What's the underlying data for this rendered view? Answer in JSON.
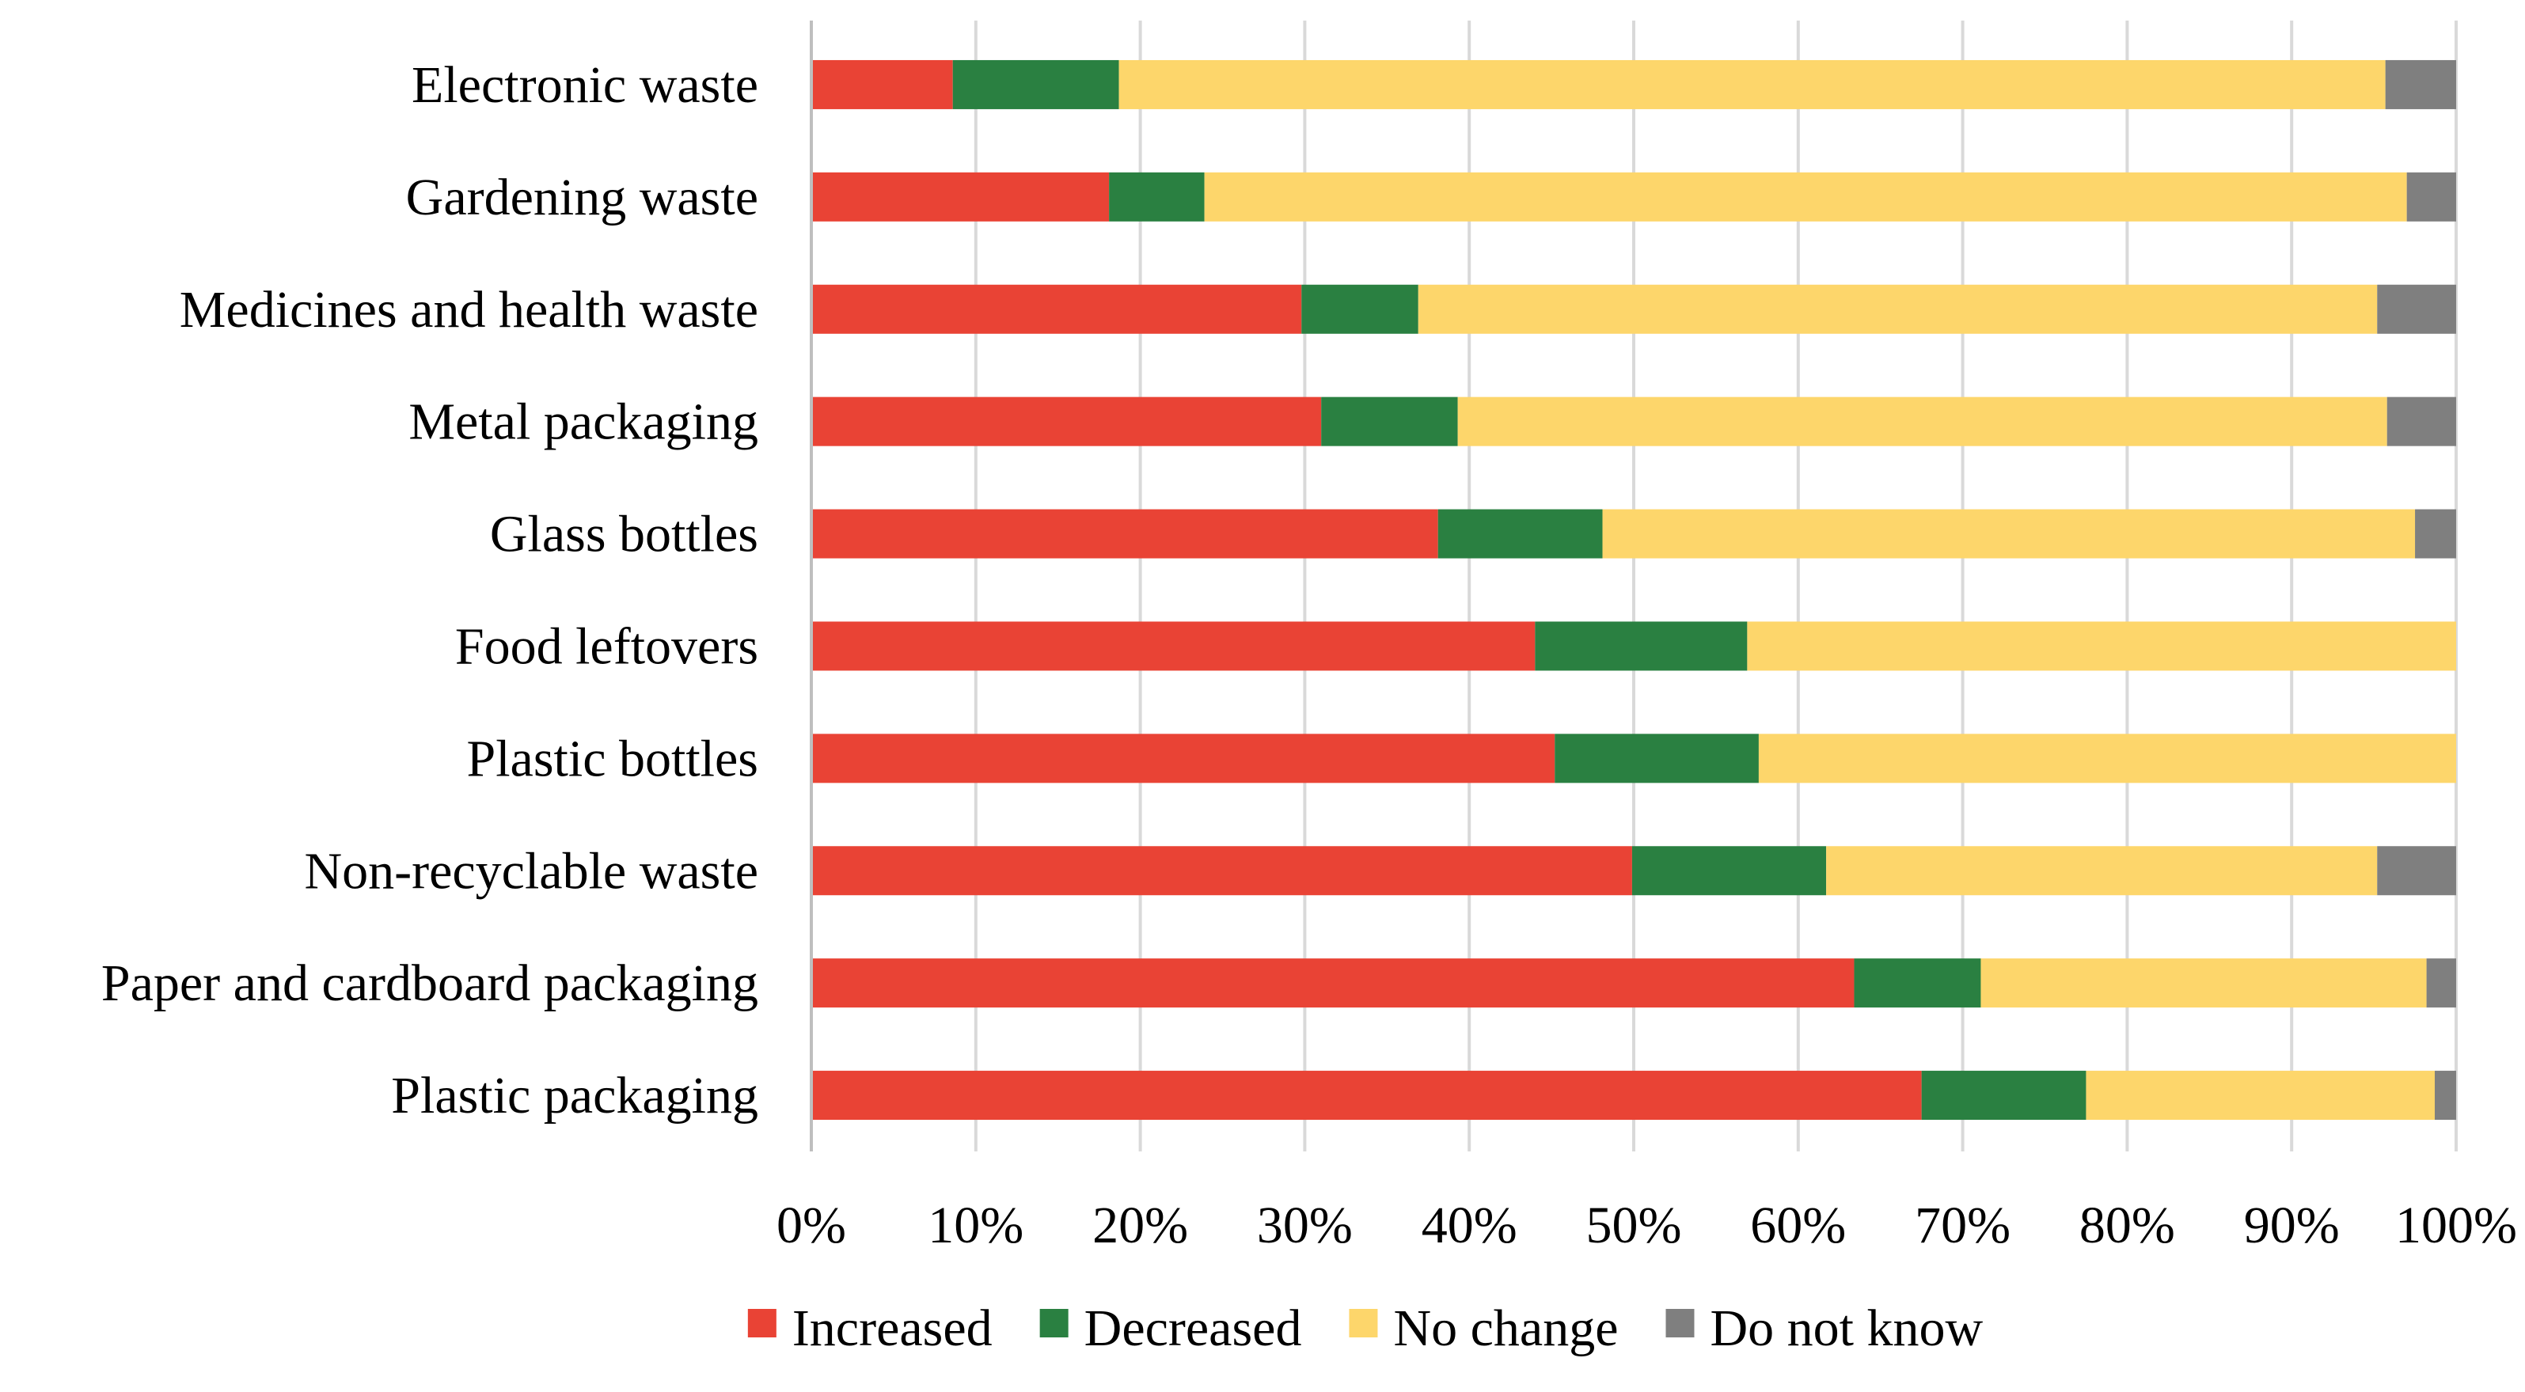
{
  "chart_data": {
    "type": "bar",
    "orientation": "horizontal",
    "stacked": "percent",
    "title": "",
    "xlabel": "",
    "ylabel": "",
    "xlim": [
      0,
      100
    ],
    "grid": true,
    "legend_position": "bottom",
    "categories": [
      "Electronic waste",
      "Gardening waste",
      "Medicines and health waste",
      "Metal packaging",
      "Glass bottles",
      "Food leftovers",
      "Plastic bottles",
      "Non-recyclable waste",
      "Paper and cardboard packaging",
      "Plastic packaging"
    ],
    "series": [
      {
        "name": "Increased",
        "color": "#e94335",
        "values": [
          8.6,
          18.1,
          29.8,
          31.0,
          38.1,
          44.0,
          45.2,
          49.9,
          63.4,
          67.5
        ]
      },
      {
        "name": "Decreased",
        "color": "#2a8041",
        "values": [
          10.1,
          5.8,
          7.1,
          8.3,
          10.0,
          12.9,
          12.4,
          11.8,
          7.7,
          10.0
        ]
      },
      {
        "name": "No change",
        "color": "#fdd66b",
        "values": [
          77.0,
          73.1,
          58.3,
          56.5,
          49.4,
          43.1,
          42.4,
          33.5,
          27.1,
          21.2
        ]
      },
      {
        "name": "Do not know",
        "color": "#7f7f7f",
        "values": [
          4.3,
          3.0,
          4.8,
          4.2,
          2.5,
          0.0,
          0.0,
          4.8,
          1.8,
          1.3
        ]
      }
    ],
    "tick_labels": [
      "0%",
      "10%",
      "20%",
      "30%",
      "40%",
      "50%",
      "60%",
      "70%",
      "80%",
      "90%",
      "100%"
    ]
  }
}
